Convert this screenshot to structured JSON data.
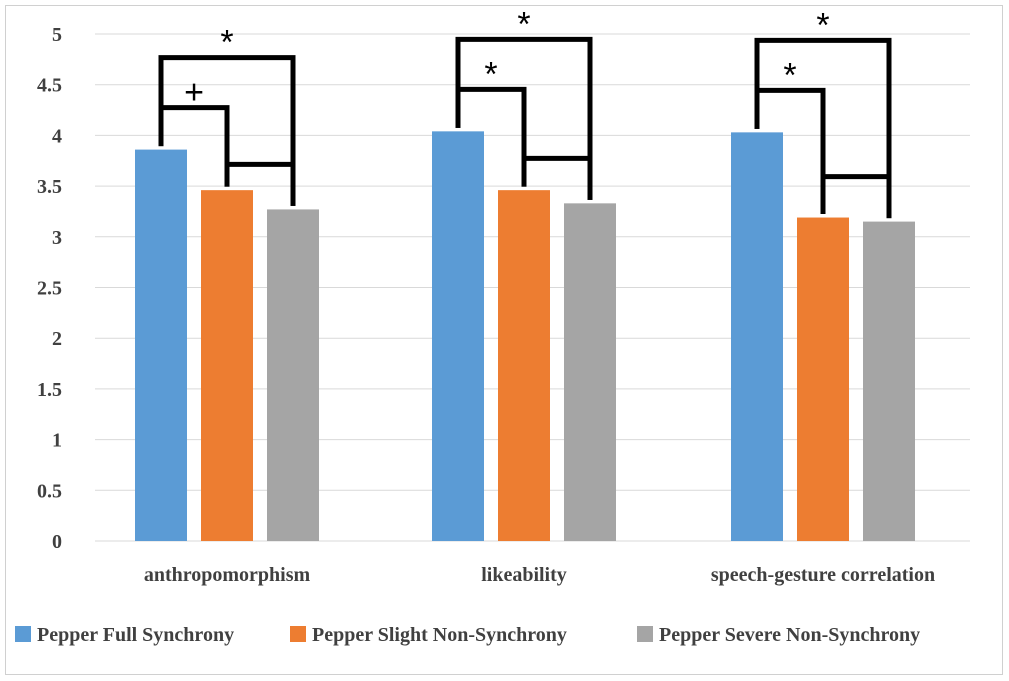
{
  "chart_data": {
    "type": "bar",
    "categories": [
      "anthropomorphism",
      "likeability",
      "speech-gesture correlation"
    ],
    "series": [
      {
        "name": "Pepper Full Synchrony",
        "color": "#5b9bd5",
        "values": [
          3.86,
          4.04,
          4.03
        ]
      },
      {
        "name": "Pepper Slight Non-Synchrony",
        "color": "#ed7d31",
        "values": [
          3.46,
          3.46,
          3.19
        ]
      },
      {
        "name": "Pepper Severe Non-Synchrony",
        "color": "#a5a5a5",
        "values": [
          3.27,
          3.33,
          3.15
        ]
      }
    ],
    "ylim": [
      0,
      5
    ],
    "yticks": [
      "0",
      "0.5",
      "1",
      "1.5",
      "2",
      "2.5",
      "3",
      "3.5",
      "4",
      "4.5",
      "5"
    ],
    "grid": true,
    "legend_position": "bottom",
    "significance": [
      {
        "category": 0,
        "from": 0,
        "to": 1,
        "mark": "+"
      },
      {
        "category": 0,
        "from": 0,
        "to": 2,
        "mark": "*"
      },
      {
        "category": 0,
        "from": 1,
        "to": 2,
        "mark": ""
      },
      {
        "category": 1,
        "from": 0,
        "to": 1,
        "mark": "*"
      },
      {
        "category": 1,
        "from": 0,
        "to": 2,
        "mark": "*"
      },
      {
        "category": 1,
        "from": 1,
        "to": 2,
        "mark": ""
      },
      {
        "category": 2,
        "from": 0,
        "to": 1,
        "mark": "*"
      },
      {
        "category": 2,
        "from": 0,
        "to": 2,
        "mark": "*"
      },
      {
        "category": 2,
        "from": 1,
        "to": 2,
        "mark": ""
      }
    ]
  }
}
